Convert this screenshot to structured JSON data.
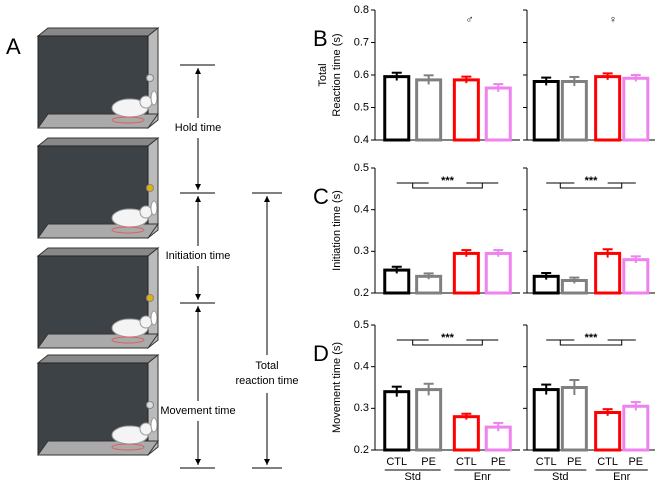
{
  "diagram": {
    "panel": "A",
    "labels": [
      "Hold time",
      "Initiation time",
      "Movement time"
    ],
    "total": [
      "Total",
      "reaction time"
    ]
  },
  "chart_data": [
    {
      "type": "bar",
      "panel": "B",
      "ylabel": [
        "Total",
        "Reaction time (s)"
      ],
      "annotation": "♂",
      "categories": [
        null,
        null,
        null,
        null
      ],
      "values": [
        0.595,
        0.585,
        0.585,
        0.56
      ],
      "errors": [
        0.012,
        0.014,
        0.01,
        0.012
      ],
      "colors": [
        "#000000",
        "#808080",
        "#ff0000",
        "#ee82ee"
      ],
      "ylim": [
        0.4,
        0.8
      ],
      "yticks": [
        0.4,
        0.5,
        0.6,
        0.7,
        0.8
      ],
      "show_ytick_labels": true
    },
    {
      "type": "bar",
      "annotation": "♀",
      "categories": [
        null,
        null,
        null,
        null
      ],
      "values": [
        0.58,
        0.58,
        0.595,
        0.59
      ],
      "errors": [
        0.012,
        0.014,
        0.01,
        0.01
      ],
      "colors": [
        "#000000",
        "#808080",
        "#ff0000",
        "#ee82ee"
      ],
      "ylim": [
        0.4,
        0.8
      ],
      "yticks": [
        0.4,
        0.5,
        0.6,
        0.7,
        0.8
      ],
      "show_ytick_labels": false
    },
    {
      "type": "bar",
      "panel": "C",
      "ylabel": [
        "Initiation time (s)"
      ],
      "significance": "***",
      "categories": [
        null,
        null,
        null,
        null
      ],
      "values": [
        0.255,
        0.24,
        0.295,
        0.295
      ],
      "errors": [
        0.008,
        0.007,
        0.008,
        0.008
      ],
      "colors": [
        "#000000",
        "#808080",
        "#ff0000",
        "#ee82ee"
      ],
      "ylim": [
        0.2,
        0.5
      ],
      "yticks": [
        0.2,
        0.3,
        0.4,
        0.5
      ],
      "show_ytick_labels": true
    },
    {
      "type": "bar",
      "significance": "***",
      "categories": [
        null,
        null,
        null,
        null
      ],
      "values": [
        0.24,
        0.23,
        0.295,
        0.28
      ],
      "errors": [
        0.008,
        0.007,
        0.01,
        0.008
      ],
      "colors": [
        "#000000",
        "#808080",
        "#ff0000",
        "#ee82ee"
      ],
      "ylim": [
        0.2,
        0.5
      ],
      "yticks": [
        0.2,
        0.3,
        0.4,
        0.5
      ],
      "show_ytick_labels": false
    },
    {
      "type": "bar",
      "panel": "D",
      "ylabel": [
        "Movement time (s)"
      ],
      "significance": "***",
      "categories": [
        "CTL",
        "PE",
        "CTL",
        "PE"
      ],
      "groups": [
        "Std",
        "Enr"
      ],
      "values": [
        0.34,
        0.345,
        0.28,
        0.255
      ],
      "errors": [
        0.012,
        0.014,
        0.007,
        0.01
      ],
      "colors": [
        "#000000",
        "#808080",
        "#ff0000",
        "#ee82ee"
      ],
      "ylim": [
        0.2,
        0.5
      ],
      "yticks": [
        0.2,
        0.3,
        0.4,
        0.5
      ],
      "show_ytick_labels": true
    },
    {
      "type": "bar",
      "significance": "***",
      "categories": [
        "CTL",
        "PE",
        "CTL",
        "PE"
      ],
      "groups": [
        "Std",
        "Enr"
      ],
      "values": [
        0.345,
        0.35,
        0.29,
        0.305
      ],
      "errors": [
        0.012,
        0.018,
        0.008,
        0.01
      ],
      "colors": [
        "#000000",
        "#808080",
        "#ff0000",
        "#ee82ee"
      ],
      "ylim": [
        0.2,
        0.5
      ],
      "yticks": [
        0.2,
        0.3,
        0.4,
        0.5
      ],
      "show_ytick_labels": false
    }
  ]
}
